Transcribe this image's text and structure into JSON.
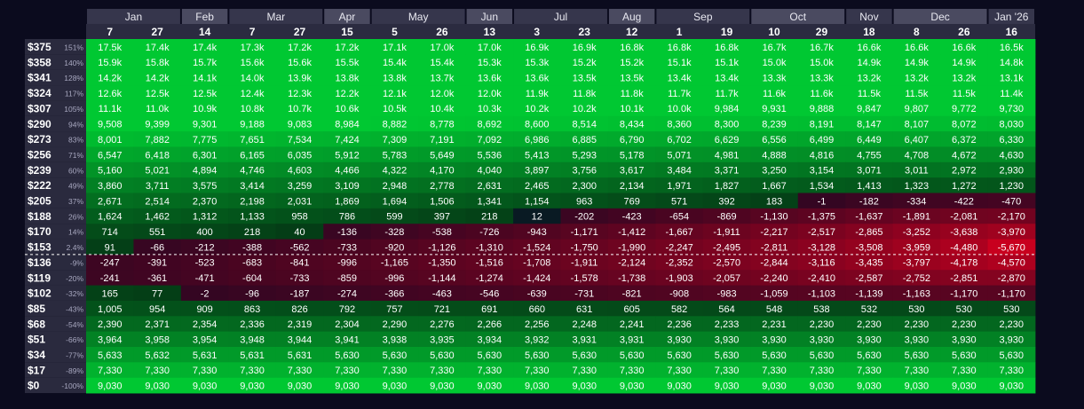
{
  "chart_data": {
    "type": "heatmap",
    "months": [
      {
        "label": "Jan",
        "span": 2
      },
      {
        "label": "Feb",
        "span": 1
      },
      {
        "label": "Mar",
        "span": 2
      },
      {
        "label": "Apr",
        "span": 1
      },
      {
        "label": "May",
        "span": 2
      },
      {
        "label": "Jun",
        "span": 1
      },
      {
        "label": "Jul",
        "span": 2
      },
      {
        "label": "Aug",
        "span": 1
      },
      {
        "label": "Sep",
        "span": 2
      },
      {
        "label": "Oct",
        "span": 2
      },
      {
        "label": "Nov",
        "span": 1
      },
      {
        "label": "Dec",
        "span": 2
      },
      {
        "label": "Jan '26",
        "span": 1
      }
    ],
    "days": [
      "7",
      "27",
      "14",
      "7",
      "27",
      "15",
      "5",
      "26",
      "13",
      "3",
      "23",
      "12",
      "1",
      "19",
      "10",
      "29",
      "18",
      "8",
      "26",
      "16"
    ],
    "rows": [
      {
        "price": "$375",
        "pct": "151%",
        "cells": [
          "17.5k",
          "17.4k",
          "17.4k",
          "17.3k",
          "17.2k",
          "17.2k",
          "17.1k",
          "17.0k",
          "17.0k",
          "16.9k",
          "16.9k",
          "16.8k",
          "16.8k",
          "16.8k",
          "16.7k",
          "16.7k",
          "16.6k",
          "16.6k",
          "16.6k",
          "16.5k"
        ]
      },
      {
        "price": "$358",
        "pct": "140%",
        "cells": [
          "15.9k",
          "15.8k",
          "15.7k",
          "15.6k",
          "15.6k",
          "15.5k",
          "15.4k",
          "15.4k",
          "15.3k",
          "15.3k",
          "15.2k",
          "15.2k",
          "15.1k",
          "15.1k",
          "15.0k",
          "15.0k",
          "14.9k",
          "14.9k",
          "14.9k",
          "14.8k"
        ]
      },
      {
        "price": "$341",
        "pct": "128%",
        "cells": [
          "14.2k",
          "14.2k",
          "14.1k",
          "14.0k",
          "13.9k",
          "13.8k",
          "13.8k",
          "13.7k",
          "13.6k",
          "13.6k",
          "13.5k",
          "13.5k",
          "13.4k",
          "13.4k",
          "13.3k",
          "13.3k",
          "13.2k",
          "13.2k",
          "13.2k",
          "13.1k"
        ]
      },
      {
        "price": "$324",
        "pct": "117%",
        "cells": [
          "12.6k",
          "12.5k",
          "12.5k",
          "12.4k",
          "12.3k",
          "12.2k",
          "12.1k",
          "12.0k",
          "12.0k",
          "11.9k",
          "11.8k",
          "11.8k",
          "11.7k",
          "11.7k",
          "11.6k",
          "11.6k",
          "11.5k",
          "11.5k",
          "11.5k",
          "11.4k"
        ]
      },
      {
        "price": "$307",
        "pct": "105%",
        "cells": [
          "11.1k",
          "11.0k",
          "10.9k",
          "10.8k",
          "10.7k",
          "10.6k",
          "10.5k",
          "10.4k",
          "10.3k",
          "10.2k",
          "10.2k",
          "10.1k",
          "10.0k",
          "9,984",
          "9,931",
          "9,888",
          "9,847",
          "9,807",
          "9,772",
          "9,730"
        ]
      },
      {
        "price": "$290",
        "pct": "94%",
        "cells": [
          "9,508",
          "9,399",
          "9,301",
          "9,188",
          "9,083",
          "8,984",
          "8,882",
          "8,778",
          "8,692",
          "8,600",
          "8,514",
          "8,434",
          "8,360",
          "8,300",
          "8,239",
          "8,191",
          "8,147",
          "8,107",
          "8,072",
          "8,030"
        ]
      },
      {
        "price": "$273",
        "pct": "83%",
        "cells": [
          "8,001",
          "7,882",
          "7,775",
          "7,651",
          "7,534",
          "7,424",
          "7,309",
          "7,191",
          "7,092",
          "6,986",
          "6,885",
          "6,790",
          "6,702",
          "6,629",
          "6,556",
          "6,499",
          "6,449",
          "6,407",
          "6,372",
          "6,330"
        ]
      },
      {
        "price": "$256",
        "pct": "71%",
        "cells": [
          "6,547",
          "6,418",
          "6,301",
          "6,165",
          "6,035",
          "5,912",
          "5,783",
          "5,649",
          "5,536",
          "5,413",
          "5,293",
          "5,178",
          "5,071",
          "4,981",
          "4,888",
          "4,816",
          "4,755",
          "4,708",
          "4,672",
          "4,630"
        ]
      },
      {
        "price": "$239",
        "pct": "60%",
        "cells": [
          "5,160",
          "5,021",
          "4,894",
          "4,746",
          "4,603",
          "4,466",
          "4,322",
          "4,170",
          "4,040",
          "3,897",
          "3,756",
          "3,617",
          "3,484",
          "3,371",
          "3,250",
          "3,154",
          "3,071",
          "3,011",
          "2,972",
          "2,930"
        ]
      },
      {
        "price": "$222",
        "pct": "49%",
        "cells": [
          "3,860",
          "3,711",
          "3,575",
          "3,414",
          "3,259",
          "3,109",
          "2,948",
          "2,778",
          "2,631",
          "2,465",
          "2,300",
          "2,134",
          "1,971",
          "1,827",
          "1,667",
          "1,534",
          "1,413",
          "1,323",
          "1,272",
          "1,230"
        ]
      },
      {
        "price": "$205",
        "pct": "37%",
        "cells": [
          "2,671",
          "2,514",
          "2,370",
          "2,198",
          "2,031",
          "1,869",
          "1,694",
          "1,506",
          "1,341",
          "1,154",
          "963",
          "769",
          "571",
          "392",
          "183",
          "-1",
          "-182",
          "-334",
          "-422",
          "-470"
        ]
      },
      {
        "price": "$188",
        "pct": "26%",
        "cells": [
          "1,624",
          "1,462",
          "1,312",
          "1,133",
          "958",
          "786",
          "599",
          "397",
          "218",
          "12",
          "-202",
          "-423",
          "-654",
          "-869",
          "-1,130",
          "-1,375",
          "-1,637",
          "-1,891",
          "-2,081",
          "-2,170"
        ]
      },
      {
        "price": "$170",
        "pct": "14%",
        "cells": [
          "714",
          "551",
          "400",
          "218",
          "40",
          "-136",
          "-328",
          "-538",
          "-726",
          "-943",
          "-1,171",
          "-1,412",
          "-1,667",
          "-1,911",
          "-2,217",
          "-2,517",
          "-2,865",
          "-3,252",
          "-3,638",
          "-3,970"
        ]
      },
      {
        "price": "$153",
        "pct": "2.4%",
        "cells": [
          "91",
          "-66",
          "-212",
          "-388",
          "-562",
          "-733",
          "-920",
          "-1,126",
          "-1,310",
          "-1,524",
          "-1,750",
          "-1,990",
          "-2,247",
          "-2,495",
          "-2,811",
          "-3,128",
          "-3,508",
          "-3,959",
          "-4,480",
          "-5,670"
        ]
      },
      {
        "price": "$136",
        "pct": "-9%",
        "cells": [
          "-247",
          "-391",
          "-523",
          "-683",
          "-841",
          "-996",
          "-1,165",
          "-1,350",
          "-1,516",
          "-1,708",
          "-1,911",
          "-2,124",
          "-2,352",
          "-2,570",
          "-2,844",
          "-3,116",
          "-3,435",
          "-3,797",
          "-4,178",
          "-4,570"
        ]
      },
      {
        "price": "$119",
        "pct": "-20%",
        "cells": [
          "-241",
          "-361",
          "-471",
          "-604",
          "-733",
          "-859",
          "-996",
          "-1,144",
          "-1,274",
          "-1,424",
          "-1,578",
          "-1,738",
          "-1,903",
          "-2,057",
          "-2,240",
          "-2,410",
          "-2,587",
          "-2,752",
          "-2,851",
          "-2,870"
        ]
      },
      {
        "price": "$102",
        "pct": "-32%",
        "cells": [
          "165",
          "77",
          "-2",
          "-96",
          "-187",
          "-274",
          "-366",
          "-463",
          "-546",
          "-639",
          "-731",
          "-821",
          "-908",
          "-983",
          "-1,059",
          "-1,103",
          "-1,139",
          "-1,163",
          "-1,170",
          "-1,170"
        ]
      },
      {
        "price": "$85",
        "pct": "-43%",
        "cells": [
          "1,005",
          "954",
          "909",
          "863",
          "826",
          "792",
          "757",
          "721",
          "691",
          "660",
          "631",
          "605",
          "582",
          "564",
          "548",
          "538",
          "532",
          "530",
          "530",
          "530"
        ]
      },
      {
        "price": "$68",
        "pct": "-54%",
        "cells": [
          "2,390",
          "2,371",
          "2,354",
          "2,336",
          "2,319",
          "2,304",
          "2,290",
          "2,276",
          "2,266",
          "2,256",
          "2,248",
          "2,241",
          "2,236",
          "2,233",
          "2,231",
          "2,230",
          "2,230",
          "2,230",
          "2,230",
          "2,230"
        ]
      },
      {
        "price": "$51",
        "pct": "-66%",
        "cells": [
          "3,964",
          "3,958",
          "3,954",
          "3,948",
          "3,944",
          "3,941",
          "3,938",
          "3,935",
          "3,934",
          "3,932",
          "3,931",
          "3,931",
          "3,930",
          "3,930",
          "3,930",
          "3,930",
          "3,930",
          "3,930",
          "3,930",
          "3,930"
        ]
      },
      {
        "price": "$34",
        "pct": "-77%",
        "cells": [
          "5,633",
          "5,632",
          "5,631",
          "5,631",
          "5,631",
          "5,630",
          "5,630",
          "5,630",
          "5,630",
          "5,630",
          "5,630",
          "5,630",
          "5,630",
          "5,630",
          "5,630",
          "5,630",
          "5,630",
          "5,630",
          "5,630",
          "5,630"
        ]
      },
      {
        "price": "$17",
        "pct": "-89%",
        "cells": [
          "7,330",
          "7,330",
          "7,330",
          "7,330",
          "7,330",
          "7,330",
          "7,330",
          "7,330",
          "7,330",
          "7,330",
          "7,330",
          "7,330",
          "7,330",
          "7,330",
          "7,330",
          "7,330",
          "7,330",
          "7,330",
          "7,330",
          "7,330"
        ]
      },
      {
        "price": "$0",
        "pct": "-100%",
        "cells": [
          "9,030",
          "9,030",
          "9,030",
          "9,030",
          "9,030",
          "9,030",
          "9,030",
          "9,030",
          "9,030",
          "9,030",
          "9,030",
          "9,030",
          "9,030",
          "9,030",
          "9,030",
          "9,030",
          "9,030",
          "9,030",
          "9,030",
          "9,030"
        ]
      }
    ],
    "current_price_marker_after": "$153",
    "color_scale": {
      "positive": "#00c832",
      "negative": "#c8001e",
      "neutral": "#0b0b28"
    }
  }
}
